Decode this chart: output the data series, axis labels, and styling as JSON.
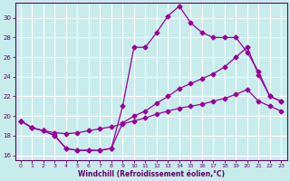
{
  "xlabel": "Windchill (Refroidissement éolien,°C)",
  "bg_color": "#c8ecec",
  "grid_color": "#ffffff",
  "line_color": "#990099",
  "xlim": [
    -0.5,
    23.5
  ],
  "ylim": [
    15.5,
    31.5
  ],
  "xticks": [
    0,
    1,
    2,
    3,
    4,
    5,
    6,
    7,
    8,
    9,
    10,
    11,
    12,
    13,
    14,
    15,
    16,
    17,
    18,
    19,
    20,
    21,
    22,
    23
  ],
  "yticks": [
    16,
    18,
    20,
    22,
    24,
    26,
    28,
    30
  ],
  "line1_x": [
    0,
    1,
    2,
    3,
    4,
    5,
    6,
    7,
    8,
    9,
    10,
    11,
    12,
    13,
    14,
    15,
    16,
    17,
    18,
    19,
    20,
    21,
    22,
    23
  ],
  "line1_y": [
    19.5,
    18.8,
    18.5,
    18.0,
    16.7,
    16.5,
    16.5,
    16.5,
    16.7,
    21.0,
    27.0,
    27.0,
    28.5,
    30.2,
    31.2,
    29.5,
    28.5,
    28.0,
    28.0,
    28.0,
    26.5,
    24.5,
    22.0,
    21.5
  ],
  "line2_x": [
    0,
    1,
    2,
    3,
    4,
    5,
    6,
    7,
    8,
    9,
    10,
    11,
    12,
    13,
    14,
    15,
    16,
    17,
    18,
    19,
    20,
    21,
    22,
    23
  ],
  "line2_y": [
    19.5,
    18.8,
    18.5,
    18.0,
    16.7,
    16.5,
    16.5,
    16.5,
    16.7,
    19.3,
    20.0,
    20.5,
    21.3,
    22.0,
    22.8,
    23.3,
    23.8,
    24.3,
    25.0,
    26.0,
    27.0,
    24.2,
    22.0,
    21.5
  ],
  "line3_x": [
    0,
    1,
    2,
    3,
    4,
    5,
    6,
    7,
    8,
    9,
    10,
    11,
    12,
    13,
    14,
    15,
    16,
    17,
    18,
    19,
    20,
    21,
    22,
    23
  ],
  "line3_y": [
    19.5,
    18.8,
    18.5,
    18.3,
    18.2,
    18.3,
    18.5,
    18.7,
    18.9,
    19.2,
    19.5,
    19.8,
    20.2,
    20.5,
    20.8,
    21.0,
    21.2,
    21.5,
    21.8,
    22.2,
    22.7,
    21.5,
    21.0,
    20.5
  ]
}
